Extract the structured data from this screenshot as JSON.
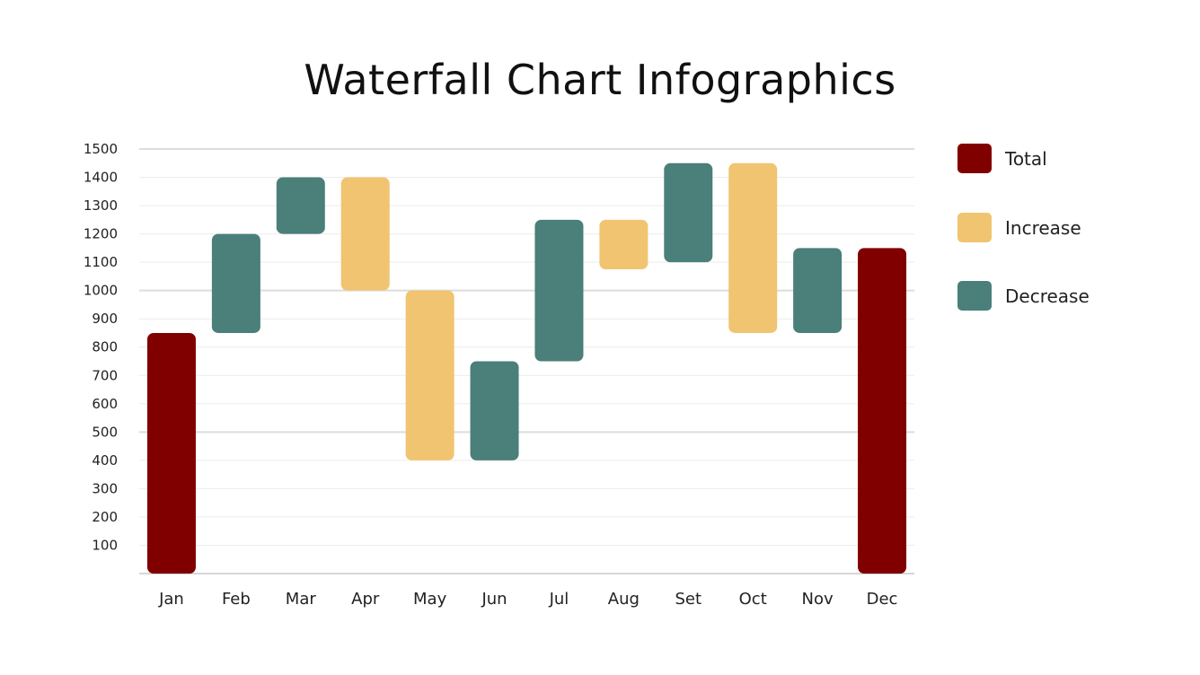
{
  "chart_data": {
    "type": "waterfall",
    "title": "Waterfall Chart Infographics",
    "categories": [
      "Jan",
      "Feb",
      "Mar",
      "Apr",
      "May",
      "Jun",
      "Jul",
      "Aug",
      "Set",
      "Oct",
      "Nov",
      "Dec"
    ],
    "bars": [
      {
        "category": "Jan",
        "kind": "Total",
        "start": 0,
        "end": 850
      },
      {
        "category": "Feb",
        "kind": "Decrease",
        "start": 850,
        "end": 1200
      },
      {
        "category": "Mar",
        "kind": "Decrease",
        "start": 1200,
        "end": 1400
      },
      {
        "category": "Apr",
        "kind": "Increase",
        "start": 1000,
        "end": 1400
      },
      {
        "category": "May",
        "kind": "Increase",
        "start": 400,
        "end": 1000
      },
      {
        "category": "Jun",
        "kind": "Decrease",
        "start": 400,
        "end": 750
      },
      {
        "category": "Jul",
        "kind": "Decrease",
        "start": 750,
        "end": 1250
      },
      {
        "category": "Aug",
        "kind": "Increase",
        "start": 1075,
        "end": 1250
      },
      {
        "category": "Set",
        "kind": "Decrease",
        "start": 1100,
        "end": 1450
      },
      {
        "category": "Oct",
        "kind": "Increase",
        "start": 850,
        "end": 1450
      },
      {
        "category": "Nov",
        "kind": "Decrease",
        "start": 850,
        "end": 1150
      },
      {
        "category": "Dec",
        "kind": "Total",
        "start": 0,
        "end": 1150
      }
    ],
    "yticks": [
      "100",
      "200",
      "300",
      "400",
      "500",
      "600",
      "700",
      "800",
      "900",
      "1000",
      "1100",
      "1200",
      "1300",
      "1400",
      "1500"
    ],
    "ylim": [
      0,
      1500
    ],
    "grid": true,
    "legend_position": "right",
    "legend": [
      {
        "name": "Total",
        "color": "#800000"
      },
      {
        "name": "Increase",
        "color": "#F0C470"
      },
      {
        "name": "Decrease",
        "color": "#4A7F7A"
      }
    ]
  }
}
